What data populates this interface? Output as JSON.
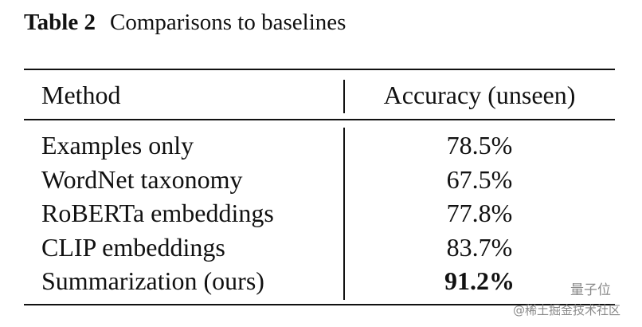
{
  "caption": {
    "label": "Table 2",
    "title": "Comparisons to baselines"
  },
  "table": {
    "header": [
      "Method",
      "Accuracy (unseen)"
    ],
    "rows": [
      [
        "Examples only",
        "78.5%"
      ],
      [
        "WordNet taxonomy",
        "67.5%"
      ],
      [
        "RoBERTa embeddings",
        "77.8%"
      ],
      [
        "CLIP embeddings",
        "83.7%"
      ],
      [
        "Summarization (ours)",
        "91.2%"
      ]
    ]
  },
  "watermark": [
    "量子位",
    "@稀土掘金技术社区"
  ]
}
